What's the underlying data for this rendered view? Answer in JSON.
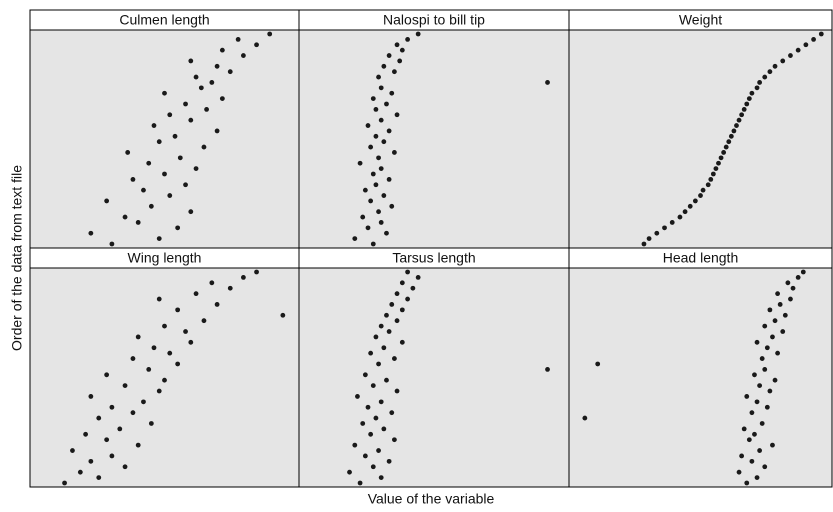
{
  "axis_labels": {
    "x": "Value of the variable",
    "y": "Order of the data from text file"
  },
  "chart_data": [
    {
      "type": "scatter",
      "title": "Culmen length",
      "xlim": [
        0,
        100
      ],
      "values": [
        30,
        48,
        22,
        55,
        40,
        35,
        60,
        45,
        28,
        52,
        42,
        58,
        38,
        50,
        62,
        44,
        56,
        36,
        65,
        48,
        54,
        70,
        46,
        60,
        52,
        66,
        58,
        72,
        50,
        64,
        68,
        62,
        75,
        70,
        60,
        80,
        72,
        85,
        78,
        90
      ]
    },
    {
      "type": "scatter",
      "title": "Nalospi to bill tip",
      "xlim": [
        0,
        100
      ],
      "values": [
        27,
        20,
        32,
        25,
        30,
        23,
        29,
        34,
        26,
        31,
        24,
        28,
        33,
        27,
        30,
        22,
        29,
        35,
        26,
        31,
        28,
        33,
        25,
        30,
        36,
        28,
        32,
        27,
        34,
        30,
        93,
        29,
        35,
        31,
        37,
        33,
        38,
        36,
        40,
        44
      ]
    },
    {
      "type": "scatter",
      "title": "Weight",
      "xlim": [
        0,
        100
      ],
      "values": [
        28,
        30,
        33,
        36,
        39,
        42,
        44,
        46,
        48,
        50,
        51,
        53,
        54,
        55,
        56,
        57,
        58,
        59,
        60,
        61,
        62,
        63,
        64,
        65,
        66,
        67,
        68,
        69,
        70,
        72,
        73,
        75,
        77,
        79,
        82,
        85,
        88,
        91,
        94,
        97
      ]
    },
    {
      "type": "scatter",
      "title": "Wing length",
      "xlim": [
        0,
        100
      ],
      "values": [
        12,
        25,
        18,
        35,
        22,
        30,
        15,
        40,
        28,
        20,
        33,
        45,
        25,
        38,
        30,
        42,
        22,
        48,
        35,
        50,
        28,
        44,
        55,
        38,
        52,
        46,
        60,
        40,
        58,
        50,
        65,
        95,
        55,
        70,
        48,
        62,
        75,
        68,
        80,
        85
      ]
    },
    {
      "type": "scatter",
      "title": "Tarsus length",
      "xlim": [
        0,
        100
      ],
      "values": [
        22,
        30,
        18,
        27,
        33,
        24,
        29,
        20,
        35,
        26,
        31,
        23,
        28,
        34,
        25,
        30,
        21,
        36,
        27,
        32,
        24,
        93,
        29,
        35,
        26,
        31,
        38,
        28,
        33,
        30,
        36,
        32,
        38,
        34,
        40,
        36,
        42,
        38,
        44,
        40
      ]
    },
    {
      "type": "scatter",
      "title": "Head length",
      "xlim": [
        0,
        100
      ],
      "values": [
        68,
        72,
        65,
        75,
        70,
        66,
        73,
        78,
        69,
        71,
        67,
        74,
        5,
        70,
        76,
        72,
        68,
        77,
        73,
        79,
        71,
        75,
        10,
        74,
        80,
        76,
        72,
        78,
        82,
        75,
        79,
        83,
        77,
        81,
        85,
        80,
        86,
        84,
        88,
        90
      ]
    }
  ]
}
